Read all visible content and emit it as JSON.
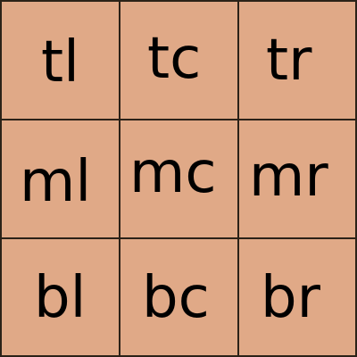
{
  "colors": {
    "cell_fill": "#e0a987",
    "grid_line": "#2b2218",
    "text": "#000000"
  },
  "cells": {
    "tl": "tl",
    "tc": "tc",
    "tr": "tr",
    "ml": "ml",
    "mc": "mc",
    "mr": "mr",
    "bl": "bl",
    "bc": "bc",
    "br": "br"
  }
}
